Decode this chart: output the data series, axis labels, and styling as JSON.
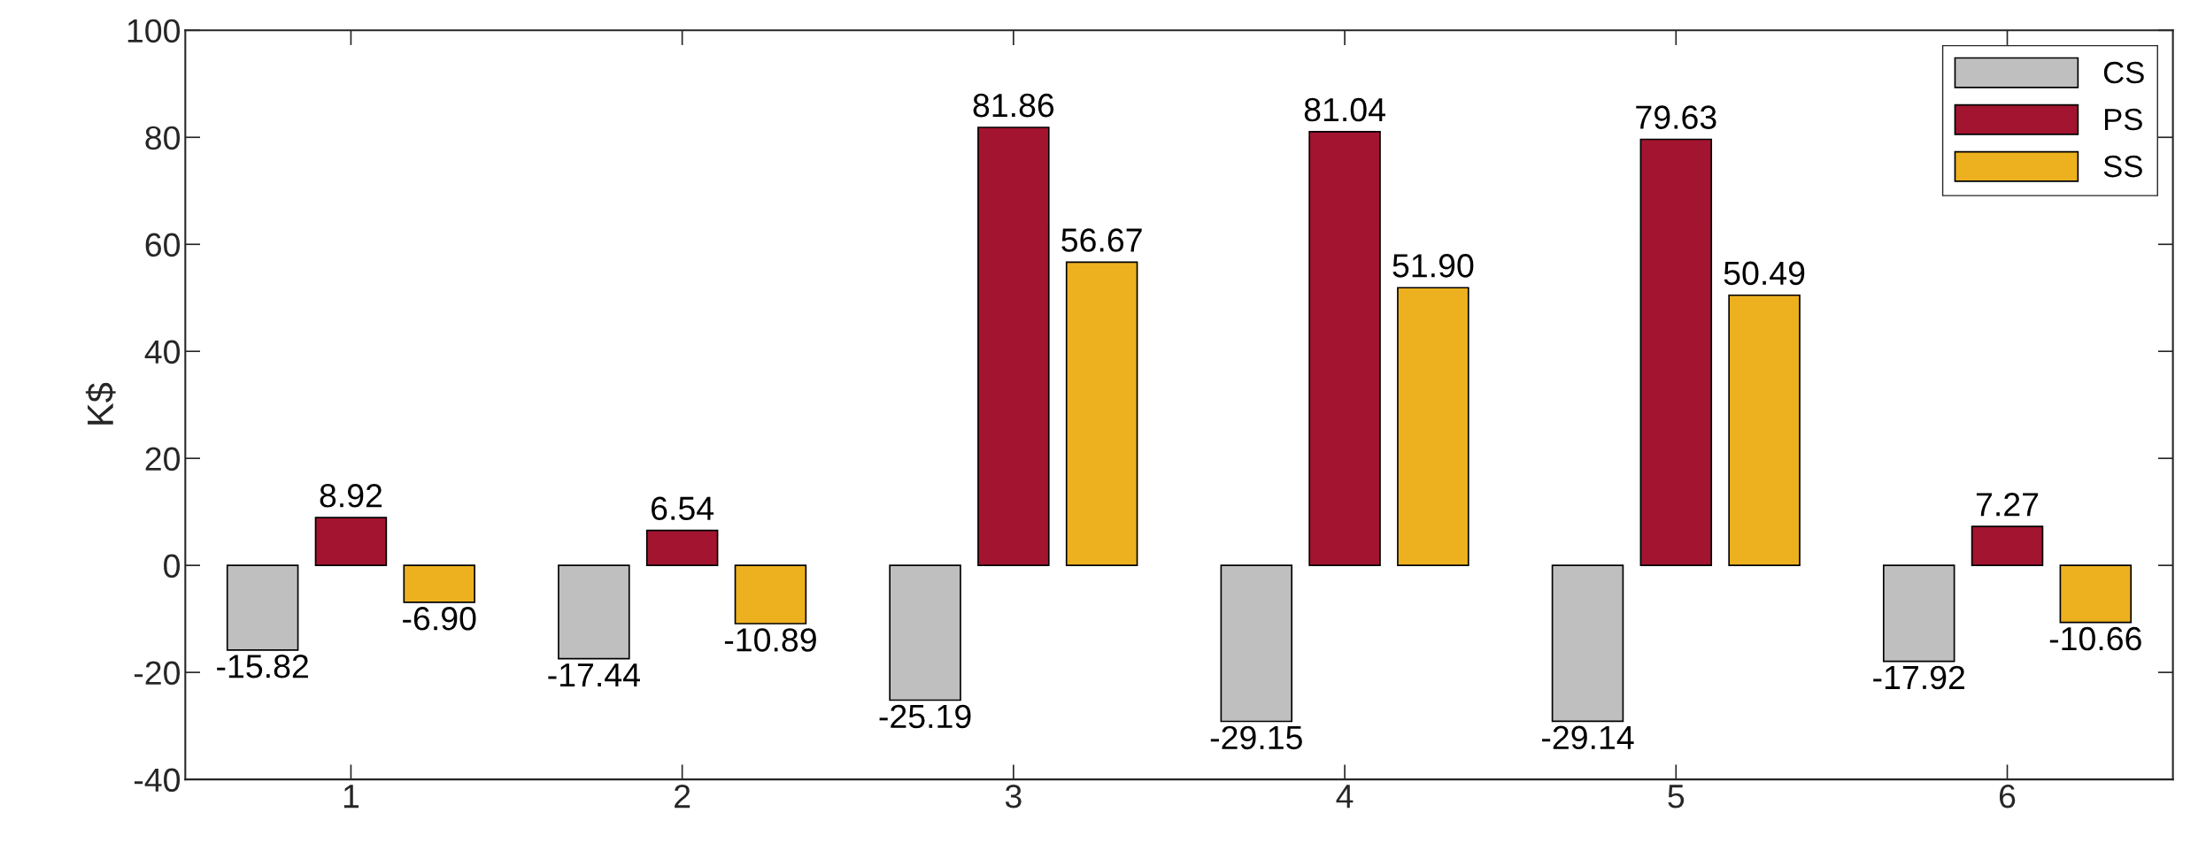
{
  "chart_data": {
    "type": "bar",
    "ylabel": "K$",
    "categories": [
      "1",
      "2",
      "3",
      "4",
      "5",
      "6"
    ],
    "series": [
      {
        "name": "CS",
        "color": "#bfbfbf",
        "values": [
          -15.82,
          -17.44,
          -25.19,
          -29.15,
          -29.14,
          -17.92
        ],
        "value_labels": [
          "-15.82",
          "-17.44",
          "-25.19",
          "-29.15",
          "-29.14",
          "-17.92"
        ]
      },
      {
        "name": "PS",
        "color": "#a2142f",
        "values": [
          8.92,
          6.54,
          81.86,
          81.04,
          79.63,
          7.27
        ],
        "value_labels": [
          "8.92",
          "6.54",
          "81.86",
          "81.04",
          "79.63",
          "7.27"
        ]
      },
      {
        "name": "SS",
        "color": "#edb120",
        "values": [
          -6.9,
          -10.89,
          56.67,
          51.9,
          50.49,
          -10.66
        ],
        "value_labels": [
          "-6.90",
          "-10.89",
          "56.67",
          "51.90",
          "50.49",
          "-10.66"
        ]
      }
    ],
    "ylim": [
      -40,
      100
    ],
    "yticks": [
      -40,
      -20,
      0,
      20,
      40,
      60,
      80,
      100
    ],
    "legend": "top right"
  }
}
